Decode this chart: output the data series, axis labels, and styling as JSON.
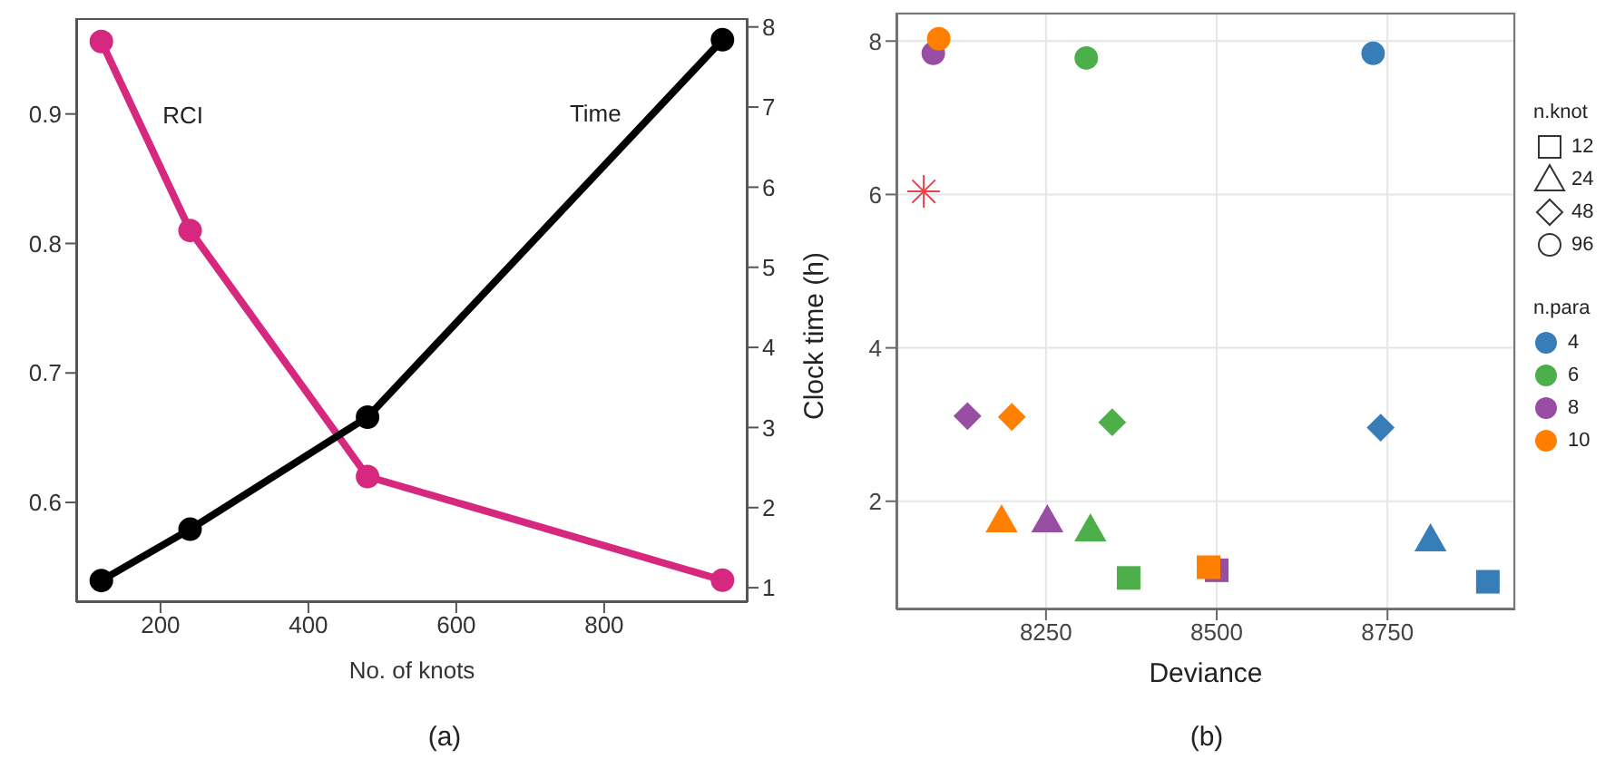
{
  "chart_data": [
    {
      "type": "line",
      "xlabel": "No. of knots",
      "x": [
        120,
        240,
        480,
        960
      ],
      "xlim": [
        86,
        994
      ],
      "xticks": [
        200,
        400,
        600,
        800
      ],
      "ylim": [
        0.523,
        0.974
      ],
      "yticks": [
        0.6,
        0.7,
        0.8,
        0.9
      ],
      "y2lim": [
        0.82,
        8.11
      ],
      "y2ticks": [
        1,
        2,
        3,
        4,
        5,
        6,
        7,
        8
      ],
      "marker": "circle",
      "line_style": "solid",
      "series": [
        {
          "name": "RCI",
          "color": "#d6287e",
          "values": [
            0.956,
            0.81,
            0.62,
            0.54
          ]
        },
        {
          "name": "Time",
          "color": "#000000",
          "axis": "y2",
          "values": [
            1.09,
            1.73,
            3.13,
            7.84
          ]
        }
      ],
      "annotations": [
        "(a)"
      ]
    },
    {
      "type": "scatter",
      "xlabel": "Deviance",
      "ylabel": "Clock time (h)",
      "xlim": [
        8031,
        8937
      ],
      "xticks": [
        8250,
        8500,
        8750
      ],
      "ylim": [
        0.59,
        8.37
      ],
      "yticks": [
        2,
        4,
        6,
        8
      ],
      "grid": true,
      "legend": "right",
      "legend_title": "n.para",
      "series": [
        {
          "name": "4",
          "color": "#377eb8",
          "x": [
            8897,
            8813,
            8740,
            8729
          ],
          "values": [
            0.95,
            1.5,
            2.96,
            7.84
          ]
        },
        {
          "name": "6",
          "color": "#4daf4a",
          "x": [
            8371,
            8315,
            8347,
            8309
          ],
          "values": [
            1.0,
            1.63,
            3.03,
            7.78
          ]
        },
        {
          "name": "8",
          "color": "#984ea3",
          "x": [
            8500,
            8252,
            8135,
            8085
          ],
          "values": [
            1.1,
            1.75,
            3.11,
            7.84
          ]
        },
        {
          "name": "10",
          "color": "#ff7f00",
          "x": [
            8488,
            8185,
            8200,
            8093
          ],
          "values": [
            1.14,
            1.75,
            3.1,
            8.03
          ]
        },
        {
          "marker": "cross",
          "x": [
            8071
          ],
          "values": [
            6.04
          ],
          "color": "#e8434a"
        }
      ],
      "annotations": [
        "n.knot",
        "12",
        "24",
        "48",
        "96",
        "(b)"
      ]
    }
  ]
}
